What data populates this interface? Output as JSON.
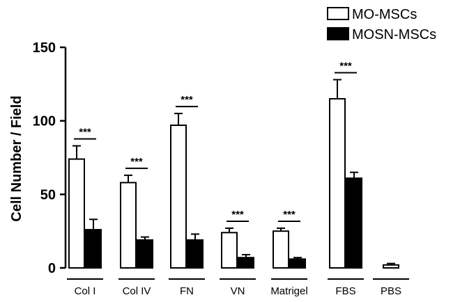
{
  "chart_data": {
    "type": "bar",
    "title": "",
    "xlabel": "",
    "ylabel": "Cell Number / Field",
    "ylim": [
      0,
      150
    ],
    "yticks": [
      "0",
      "50",
      "100",
      "150"
    ],
    "categories": [
      "Col I",
      "Col IV",
      "FN",
      "VN",
      "Matrigel",
      "FBS",
      "PBS"
    ],
    "series": [
      {
        "name": "MO-MSCs",
        "fill": "#ffffff",
        "values": [
          74,
          58,
          97,
          24,
          25,
          115,
          2
        ],
        "errors": [
          9,
          5,
          8,
          3,
          2,
          13,
          1
        ]
      },
      {
        "name": "MOSN-MSCs",
        "fill": "#000000",
        "values": [
          26,
          19,
          19,
          7,
          6,
          61,
          null
        ],
        "errors": [
          7,
          2,
          4,
          2,
          1,
          4,
          null
        ]
      }
    ],
    "significance": [
      "***",
      "***",
      "***",
      "***",
      "***",
      "***",
      ""
    ],
    "legend_position": "top-right",
    "grid": false
  }
}
